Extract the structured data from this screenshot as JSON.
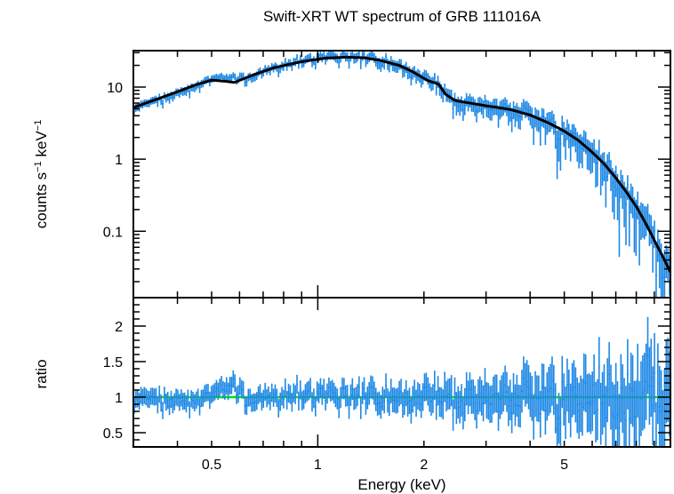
{
  "chart_data": {
    "type": "scatter",
    "title": "Swift-XRT WT spectrum of GRB 111016A",
    "xlabel": "Energy (keV)",
    "x_scale": "log",
    "xlim": [
      0.3,
      10
    ],
    "x_ticks": [
      0.5,
      1,
      2,
      5
    ],
    "x_tick_labels": [
      "0.5",
      "1",
      "2",
      "5"
    ],
    "colors": {
      "data": "#1e88e5",
      "model": "#000000",
      "unity": "#00e000"
    },
    "panels": [
      {
        "name": "spectrum",
        "ylabel_main": "counts s",
        "ylabel_sup1": "−1",
        "ylabel_mid": " keV",
        "ylabel_sup2": "−1",
        "y_scale": "log",
        "ylim": [
          0.012,
          32
        ],
        "y_ticks": [
          0.1,
          1,
          10
        ],
        "y_tick_labels": [
          "0.1",
          "1",
          "10"
        ],
        "series": [
          {
            "kind": "model",
            "x": [
              0.3,
              0.35,
              0.4,
              0.45,
              0.5,
              0.55,
              0.58,
              0.65,
              0.75,
              0.9,
              1.05,
              1.2,
              1.35,
              1.5,
              1.7,
              1.85,
              2.05,
              2.2,
              2.3,
              2.45,
              2.7,
              3.0,
              3.5,
              4.0,
              4.5,
              5.0,
              5.5,
              6.0,
              6.5,
              7.0,
              7.5,
              8.0,
              8.5,
              9.0,
              9.5,
              10.0
            ],
            "y": [
              5.2,
              6.8,
              8.6,
              10.7,
              12.5,
              12.0,
              11.6,
              14.5,
              18.5,
              22.5,
              25.2,
              26.0,
              25.5,
              23.5,
              20.0,
              16.5,
              12.3,
              11.0,
              8.0,
              6.5,
              6.0,
              5.5,
              4.9,
              4.1,
              3.2,
              2.45,
              1.8,
              1.25,
              0.85,
              0.55,
              0.35,
              0.22,
              0.13,
              0.075,
              0.045,
              0.027
            ]
          },
          {
            "kind": "data",
            "scatter": 0.12,
            "x_from": 0.3,
            "x_to": 10.0,
            "points": 320
          }
        ]
      },
      {
        "name": "ratio",
        "ylabel": "ratio",
        "y_scale": "linear",
        "ylim": [
          0.3,
          2.4
        ],
        "y_ticks": [
          0.5,
          1,
          1.5,
          2
        ],
        "y_tick_labels": [
          "0.5",
          "1",
          "1.5",
          "2"
        ],
        "reference_line": 1,
        "series": [
          {
            "kind": "data",
            "x_from": 0.3,
            "x_to": 10.0,
            "points": 320,
            "ratio_error_low_E": 0.12,
            "ratio_error_high_E": 0.6
          }
        ]
      }
    ]
  }
}
